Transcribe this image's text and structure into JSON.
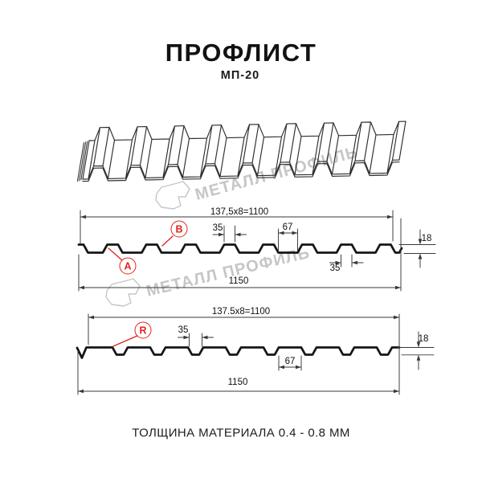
{
  "title": "ПРОФЛИСТ",
  "subtitle": "МП-20",
  "watermark": {
    "brand": "МЕТАЛЛ ПРОФИЛЬ"
  },
  "section_ab": {
    "width_formula": "137,5x8=1100",
    "crest_width": "35",
    "valley_width": "67",
    "profile_height": "18",
    "crest_width_bottom": "35",
    "overall_width": "1150",
    "point_a": "A",
    "point_b": "B"
  },
  "section_r": {
    "width_formula": "137.5x8=1100",
    "valley_width": "35",
    "profile_height": "18",
    "crest_width": "67",
    "overall_width": "1150",
    "point_r": "R"
  },
  "footer": "ТОЛЩИНА МАТЕРИАЛА 0.4 - 0.8 ММ",
  "colors": {
    "accent": "#e2231a",
    "line": "#1a1a1a",
    "dimension": "#383838",
    "watermark": "#c6c6c6"
  }
}
